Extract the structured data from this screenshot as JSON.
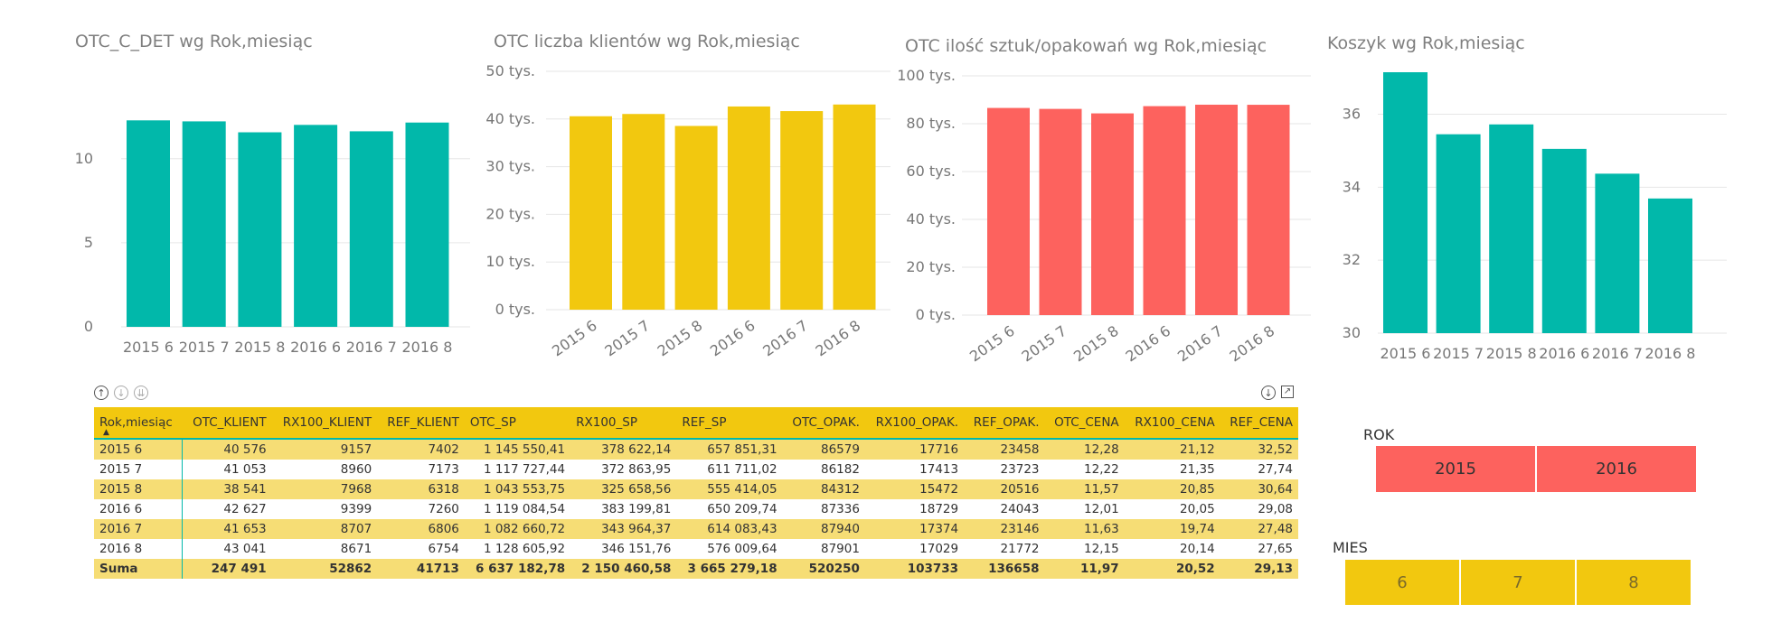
{
  "chart_data": [
    {
      "type": "bar",
      "title": "OTC_C_DET wg Rok,miesiąc",
      "categories": [
        "2015 6",
        "2015 7",
        "2015 8",
        "2016 6",
        "2016 7",
        "2016 8"
      ],
      "values": [
        12.28,
        12.22,
        11.57,
        12.01,
        11.63,
        12.15
      ],
      "ylim": [
        0,
        13.8
      ],
      "yticks": [
        0,
        5,
        10
      ],
      "ytick_labels": [
        "0",
        "5",
        "10"
      ],
      "color": "#01b8aa",
      "xlabel_rotated": false
    },
    {
      "type": "bar",
      "title": "OTC liczba klientów wg Rok,miesiąc",
      "categories": [
        "2015 6",
        "2015 7",
        "2015 8",
        "2016 6",
        "2016 7",
        "2016 8"
      ],
      "values": [
        40576,
        41053,
        38541,
        42627,
        41653,
        43041
      ],
      "ylim": [
        0,
        50000
      ],
      "yticks": [
        0,
        10000,
        20000,
        30000,
        40000,
        50000
      ],
      "ytick_labels": [
        "0 tys.",
        "10 tys.",
        "20 tys.",
        "30 tys.",
        "40 tys.",
        "50 tys."
      ],
      "color": "#f2c80f",
      "xlabel_rotated": true
    },
    {
      "type": "bar",
      "title": "OTC ilość sztuk/opakowań wg Rok,miesiąc",
      "categories": [
        "2015 6",
        "2015 7",
        "2015 8",
        "2016 6",
        "2016 7",
        "2016 8"
      ],
      "values": [
        86579,
        86182,
        84312,
        87336,
        87940,
        87901
      ],
      "ylim": [
        0,
        100000
      ],
      "yticks": [
        0,
        20000,
        40000,
        60000,
        80000,
        100000
      ],
      "ytick_labels": [
        "0 tys.",
        "20 tys.",
        "40 tys.",
        "60 tys.",
        "80 tys.",
        "100 tys."
      ],
      "color": "#fd625e",
      "xlabel_rotated": true
    },
    {
      "type": "bar",
      "title": "Koszyk wg Rok,miesiąc",
      "categories": [
        "2015 6",
        "2015 7",
        "2015 8",
        "2016 6",
        "2016 7",
        "2016 8"
      ],
      "values": [
        37.15,
        35.45,
        35.72,
        35.05,
        34.37,
        33.69
      ],
      "ylim": [
        30,
        37.15
      ],
      "yticks": [
        30,
        32,
        34,
        36
      ],
      "ytick_labels": [
        "30",
        "32",
        "34",
        "36"
      ],
      "color": "#01b8aa",
      "xlabel_rotated": false
    }
  ],
  "table": {
    "headers": [
      "Rok,miesiąc",
      "OTC_KLIENT",
      "RX100_KLIENT",
      "REF_KLIENT",
      "OTC_SP",
      "RX100_SP",
      "REF_SP",
      "OTC_OPAK.",
      "RX100_OPAK.",
      "REF_OPAK.",
      "OTC_CENA",
      "RX100_CENA",
      "REF_CENA"
    ],
    "sort_indicator": "▲",
    "rows": [
      [
        "2015 6",
        "40 576",
        "9157",
        "7402",
        "1 145 550,41",
        "378 622,14",
        "657 851,31",
        "86579",
        "17716",
        "23458",
        "12,28",
        "21,12",
        "32,52"
      ],
      [
        "2015 7",
        "41 053",
        "8960",
        "7173",
        "1 117 727,44",
        "372 863,95",
        "611 711,02",
        "86182",
        "17413",
        "23723",
        "12,22",
        "21,35",
        "27,74"
      ],
      [
        "2015 8",
        "38 541",
        "7968",
        "6318",
        "1 043 553,75",
        "325 658,56",
        "555 414,05",
        "84312",
        "15472",
        "20516",
        "11,57",
        "20,85",
        "30,64"
      ],
      [
        "2016 6",
        "42 627",
        "9399",
        "7260",
        "1 119 084,54",
        "383 199,81",
        "650 209,74",
        "87336",
        "18729",
        "24043",
        "12,01",
        "20,05",
        "29,08"
      ],
      [
        "2016 7",
        "41 653",
        "8707",
        "6806",
        "1 082 660,72",
        "343 964,37",
        "614 083,43",
        "87940",
        "17374",
        "23146",
        "11,63",
        "19,74",
        "27,48"
      ],
      [
        "2016 8",
        "43 041",
        "8671",
        "6754",
        "1 128 605,92",
        "346 151,76",
        "576 009,64",
        "87901",
        "17029",
        "21772",
        "12,15",
        "20,14",
        "27,65"
      ]
    ],
    "total": [
      "Suma",
      "247 491",
      "52862",
      "41713",
      "6 637 182,78",
      "2 150 460,58",
      "3 665 279,18",
      "520250",
      "103733",
      "136658",
      "11,97",
      "20,52",
      "29,13"
    ]
  },
  "slicers": {
    "rok": {
      "title": "ROK",
      "options": [
        "2015",
        "2016"
      ]
    },
    "mies": {
      "title": "MIES",
      "options": [
        "6",
        "7",
        "8"
      ]
    }
  },
  "toolbar": {
    "drill_up": "↑",
    "drill_down": "↓",
    "expand": "⇊",
    "focus_mode": "↗"
  }
}
